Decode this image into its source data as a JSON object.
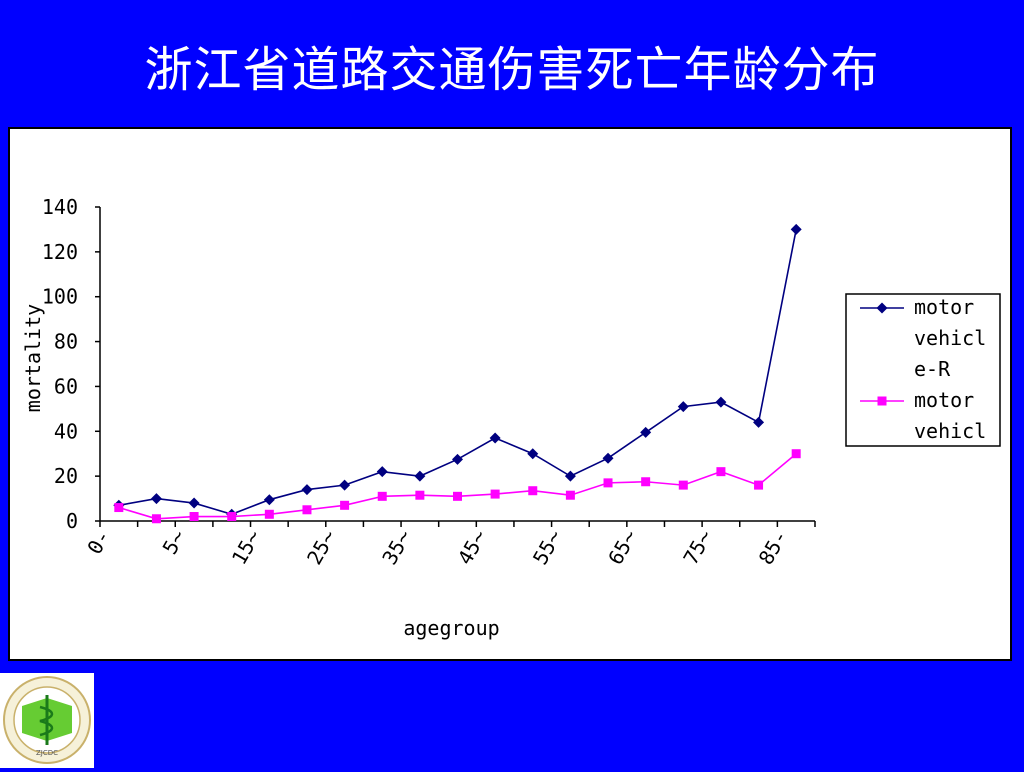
{
  "slide": {
    "title": "浙江省道路交通伤害死亡年龄分布"
  },
  "chart_data": {
    "type": "line",
    "xlabel": "agegroup",
    "ylabel": "mortality",
    "ylim": [
      0,
      140
    ],
    "yticks": [
      0,
      20,
      40,
      60,
      80,
      100,
      120,
      140
    ],
    "categories": [
      "0-",
      "",
      "5~",
      "",
      "15~",
      "",
      "25~",
      "",
      "35~",
      "",
      "45~",
      "",
      "55~",
      "",
      "65~",
      "",
      "75~",
      "",
      "85-"
    ],
    "tick_labels": [
      "0-",
      "5~",
      "15~",
      "25~",
      "35~",
      "45~",
      "55~",
      "65~",
      "75~",
      "85-"
    ],
    "legend_position": "right",
    "series": [
      {
        "name": "motor vehicle-R",
        "legend_lines": [
          "motor",
          "vehicl",
          "e-R"
        ],
        "color": "#000080",
        "marker": "diamond",
        "values": [
          7,
          10,
          8,
          3,
          9.5,
          14,
          16,
          22,
          20,
          27.5,
          37,
          30,
          20,
          28,
          39.5,
          51,
          53,
          44,
          130
        ]
      },
      {
        "name": "motor vehicle",
        "legend_lines": [
          "motor",
          "vehicl"
        ],
        "color": "#ff00ff",
        "marker": "square",
        "values": [
          6,
          1,
          2,
          2,
          3,
          5,
          7,
          11,
          11.5,
          11,
          12,
          13.5,
          11.5,
          17,
          17.5,
          16,
          22,
          16,
          30
        ]
      }
    ]
  },
  "logo": {
    "name": "ZJCDC",
    "text": "ZJCDC"
  }
}
